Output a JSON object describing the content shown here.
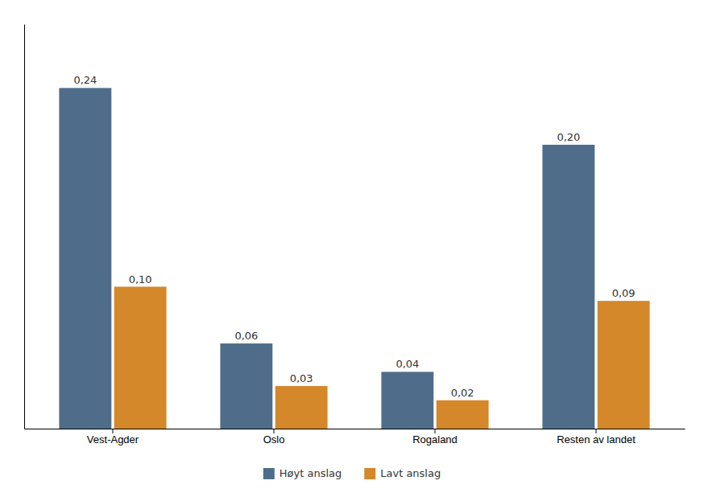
{
  "chart_data": {
    "type": "bar",
    "categories": [
      "Vest-Agder",
      "Oslo",
      "Rogaland",
      "Resten av landet"
    ],
    "series": [
      {
        "name": "Høyt anslag",
        "color": "#4F6D8A",
        "values": [
          0.24,
          0.06,
          0.04,
          0.2
        ],
        "value_labels": [
          "0,24",
          "0,06",
          "0,04",
          "0,20"
        ]
      },
      {
        "name": "Lavt anslag",
        "color": "#D4882A",
        "values": [
          0.1,
          0.03,
          0.02,
          0.09
        ],
        "value_labels": [
          "0,10",
          "0,03",
          "0,02",
          "0,09"
        ]
      }
    ],
    "ylim": [
      0,
      0.285
    ],
    "data_labels": true,
    "tick_labels": "x",
    "grid": false,
    "legend": "bottom"
  }
}
